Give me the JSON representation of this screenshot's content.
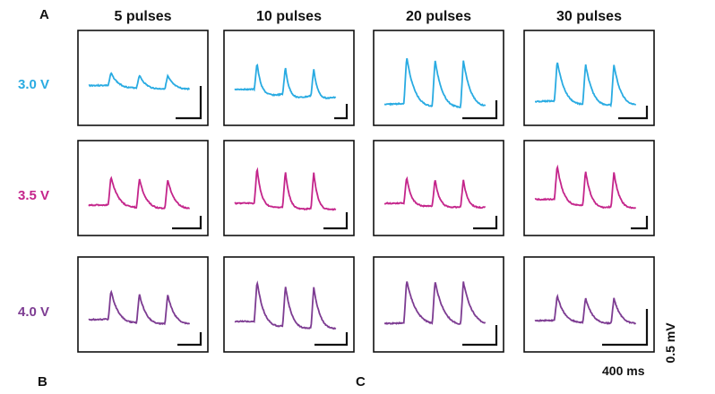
{
  "panel_labels": {
    "a": "A",
    "b": "B",
    "c": "C"
  },
  "chart_data": {
    "type": "line",
    "title": "",
    "columns": [
      "5 pulses",
      "10 pulses",
      "20 pulses",
      "30 pulses"
    ],
    "rows": [
      {
        "label": "3.0 V",
        "color": "#29abe2"
      },
      {
        "label": "3.5 V",
        "color": "#c4258b"
      },
      {
        "label": "4.0 V",
        "color": "#7d3c92"
      }
    ],
    "peaks_per_trace": 3,
    "scale_bar": {
      "voltage": "0.5 mV",
      "time": "400 ms"
    }
  }
}
